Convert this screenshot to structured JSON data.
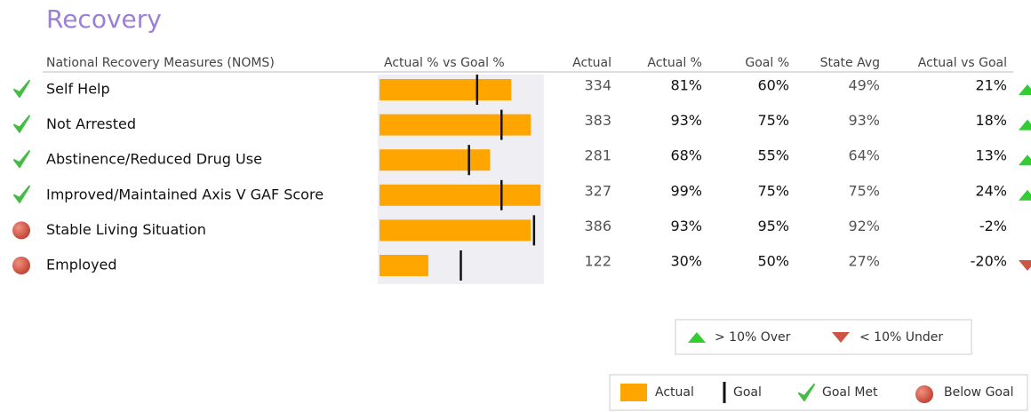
{
  "title": "Recovery",
  "table": {
    "columns": [
      "National Recovery Measures (NOMS)",
      "Actual % vs Goal %",
      "Actual",
      "Actual %",
      "Goal %",
      "State Avg",
      "Actual vs Goal"
    ],
    "xlim": [
      0,
      100
    ],
    "rows": [
      {
        "name": "Self Help",
        "status": "met",
        "actual": 334,
        "actual_pct": {
          "value": 81,
          "label": "81%"
        },
        "goal_pct": {
          "value": 60,
          "label": "60%"
        },
        "state_avg": {
          "value": 49,
          "label": "49%"
        },
        "vs_goal": {
          "value": 21,
          "label": "21%"
        },
        "trend": "up"
      },
      {
        "name": "Not Arrested",
        "status": "met",
        "actual": 383,
        "actual_pct": {
          "value": 93,
          "label": "93%"
        },
        "goal_pct": {
          "value": 75,
          "label": "75%"
        },
        "state_avg": {
          "value": 93,
          "label": "93%"
        },
        "vs_goal": {
          "value": 18,
          "label": "18%"
        },
        "trend": "up"
      },
      {
        "name": "Abstinence/Reduced Drug Use",
        "status": "met",
        "actual": 281,
        "actual_pct": {
          "value": 68,
          "label": "68%"
        },
        "goal_pct": {
          "value": 55,
          "label": "55%"
        },
        "state_avg": {
          "value": 64,
          "label": "64%"
        },
        "vs_goal": {
          "value": 13,
          "label": "13%"
        },
        "trend": "up"
      },
      {
        "name": "Improved/Maintained Axis V GAF Score",
        "status": "met",
        "actual": 327,
        "actual_pct": {
          "value": 99,
          "label": "99%"
        },
        "goal_pct": {
          "value": 75,
          "label": "75%"
        },
        "state_avg": {
          "value": 75,
          "label": "75%"
        },
        "vs_goal": {
          "value": 24,
          "label": "24%"
        },
        "trend": "up"
      },
      {
        "name": "Stable Living Situation",
        "status": "below",
        "actual": 386,
        "actual_pct": {
          "value": 93,
          "label": "93%"
        },
        "goal_pct": {
          "value": 95,
          "label": "95%"
        },
        "state_avg": {
          "value": 92,
          "label": "92%"
        },
        "vs_goal": {
          "value": -2,
          "label": "-2%"
        },
        "trend": "none"
      },
      {
        "name": "Employed",
        "status": "below",
        "actual": 122,
        "actual_pct": {
          "value": 30,
          "label": "30%"
        },
        "goal_pct": {
          "value": 50,
          "label": "50%"
        },
        "state_avg": {
          "value": 27,
          "label": "27%"
        },
        "vs_goal": {
          "value": -20,
          "label": "-20%"
        },
        "trend": "down"
      }
    ]
  },
  "legend": {
    "over": "> 10% Over",
    "under": "< 10% Under",
    "actual": "Actual",
    "goal": "Goal",
    "met": "Goal Met",
    "below": "Below Goal"
  },
  "colors": {
    "bar": "#ffa500",
    "goal": "#111111",
    "up": "#33cc33",
    "down": "#cc5544",
    "met": "#44bb44",
    "below": "#d0503c"
  }
}
